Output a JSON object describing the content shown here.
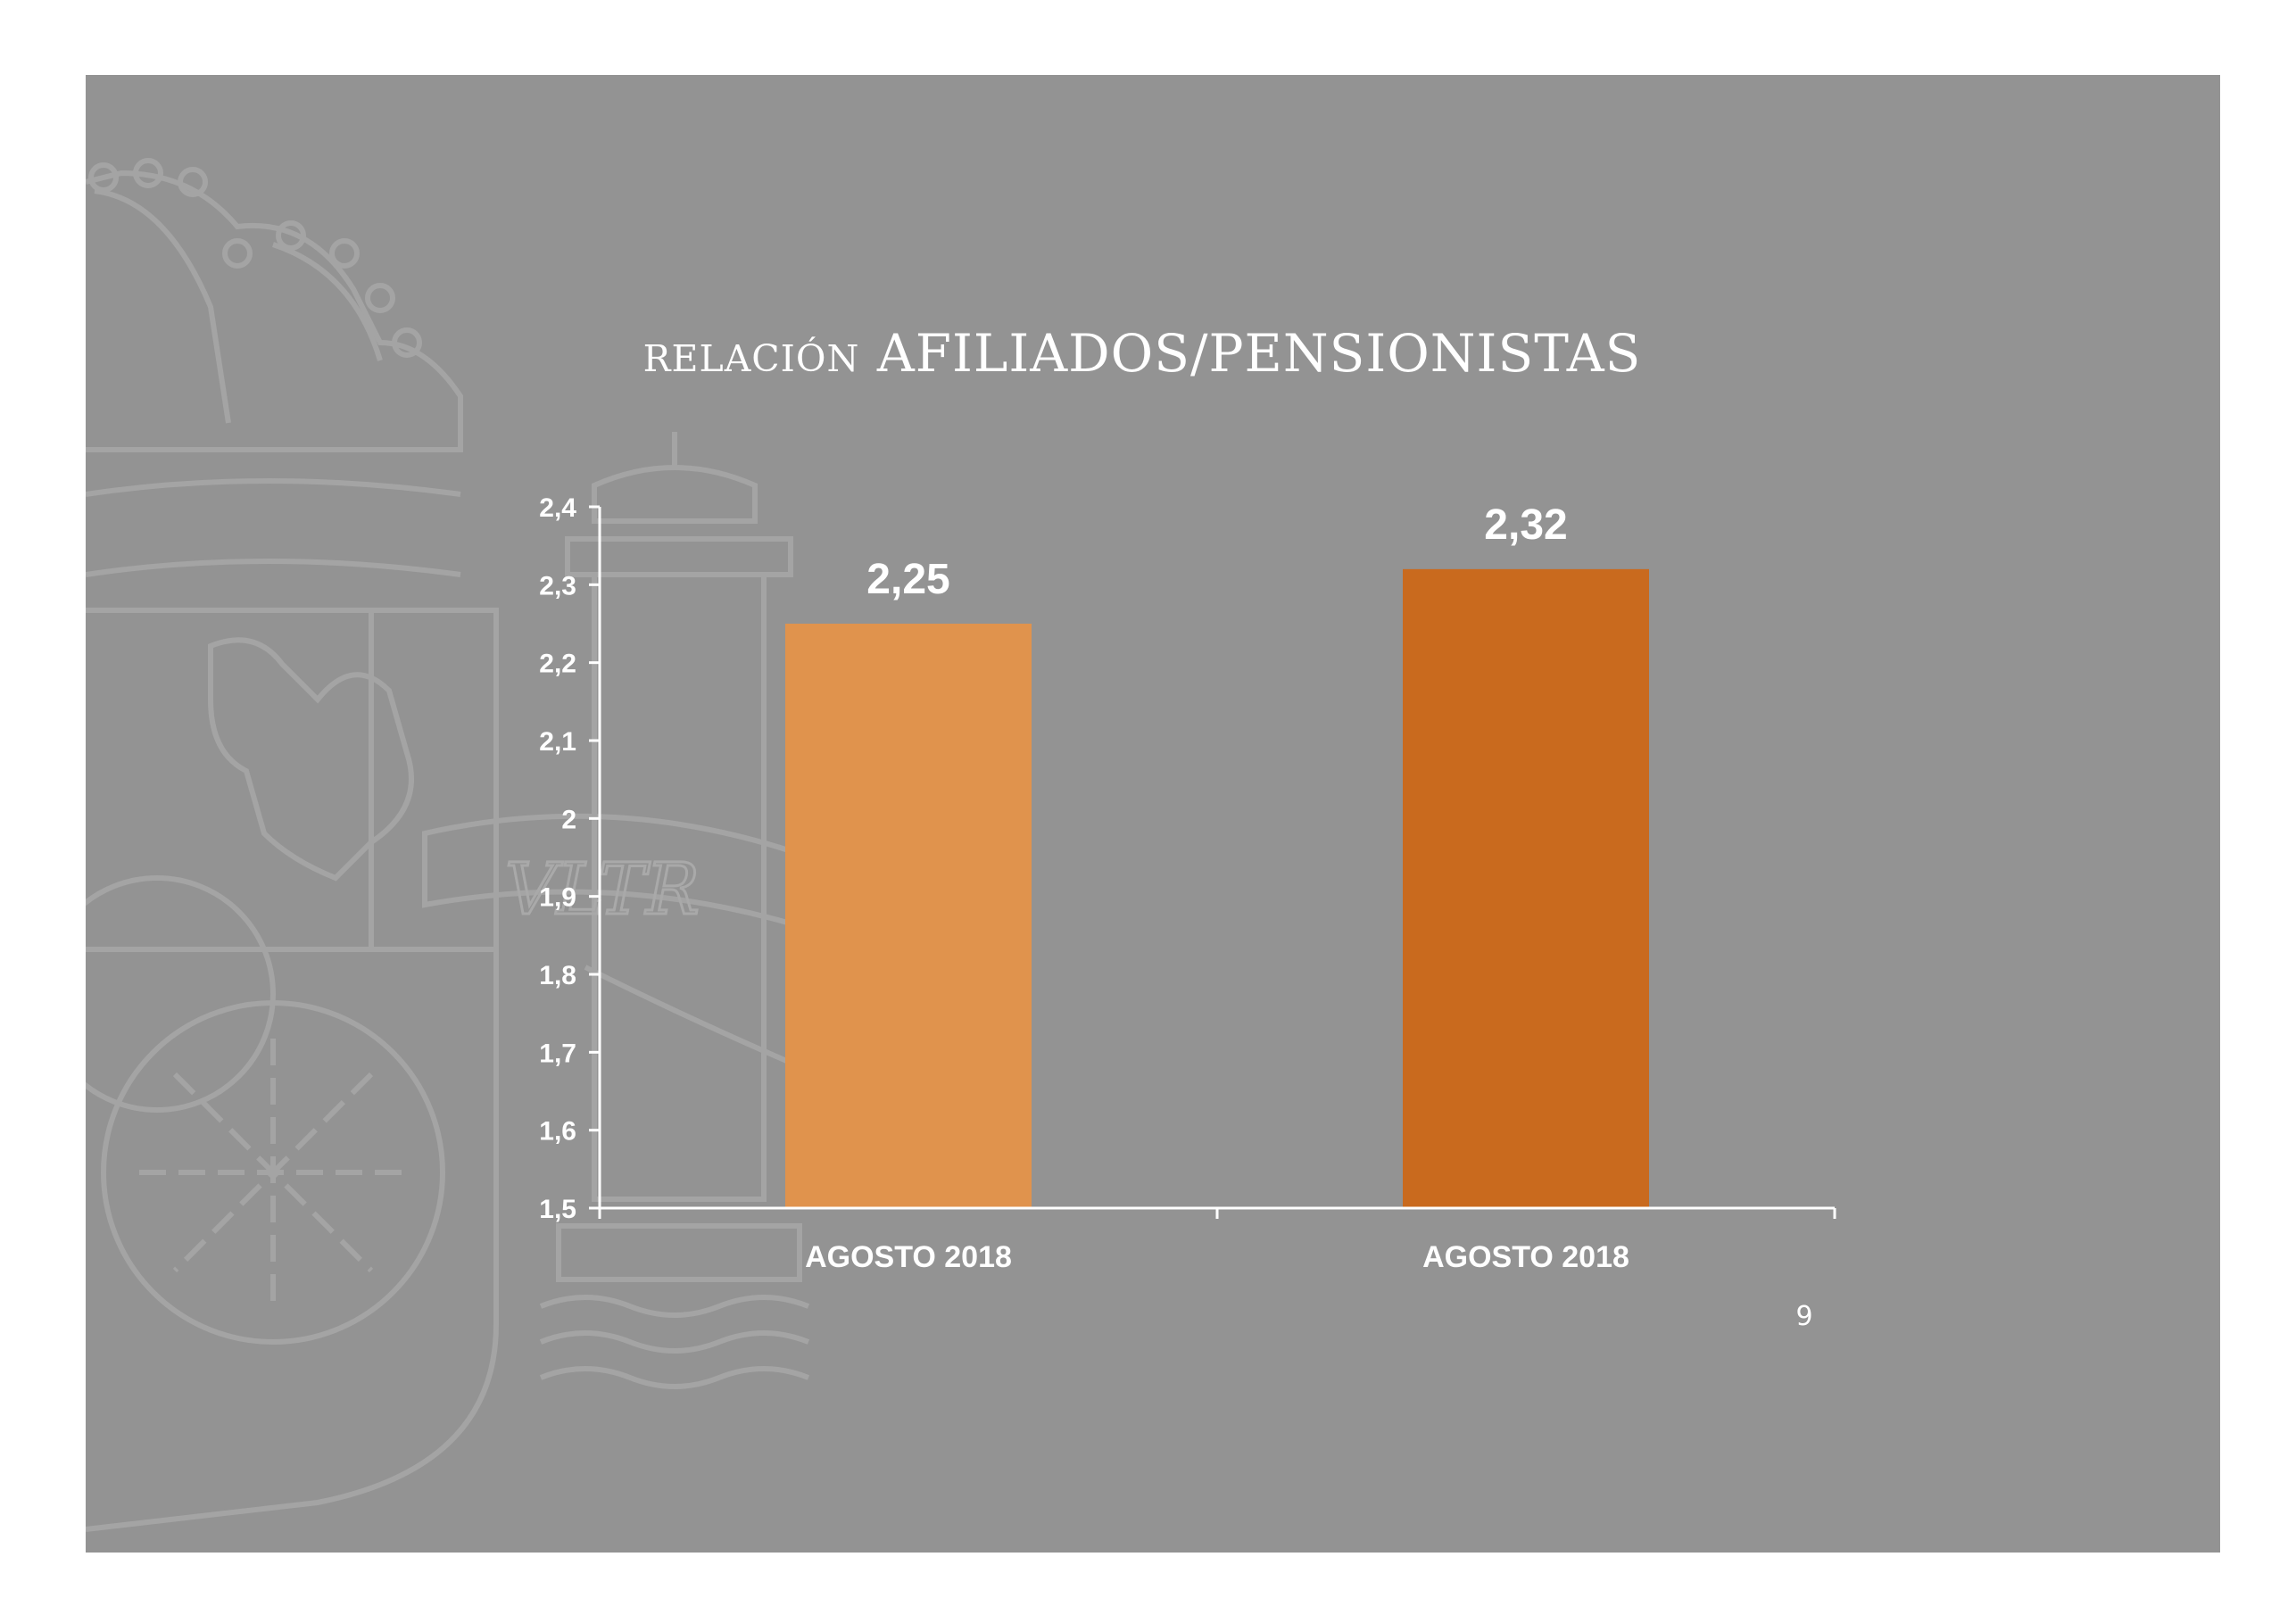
{
  "slide": {
    "page_number": "9",
    "background_color": "#939393",
    "watermark": "coat-of-arms",
    "watermark_text": "VLTR"
  },
  "chart_data": {
    "type": "bar",
    "title_parts": [
      "Relación",
      "AFILIADOS/PENSIONISTAS"
    ],
    "categories": [
      "AGOSTO 2018",
      "AGOSTO 2018"
    ],
    "values": [
      2.25,
      2.32
    ],
    "value_labels": [
      "2,25",
      "2,32"
    ],
    "bar_colors": [
      "#e0934d",
      "#c96a1e"
    ],
    "ylim": [
      1.5,
      2.4
    ],
    "ytick_values": [
      1.5,
      1.6,
      1.7,
      1.8,
      1.9,
      2.0,
      2.1,
      2.2,
      2.3,
      2.4
    ],
    "ytick_labels": [
      "1,5",
      "1,6",
      "1,7",
      "1,8",
      "1,9",
      "2",
      "2,1",
      "2,2",
      "2,3",
      "2,4"
    ],
    "grid": false,
    "legend": "none",
    "axis_color": "#ffffff",
    "text_color": "#ffffff"
  }
}
